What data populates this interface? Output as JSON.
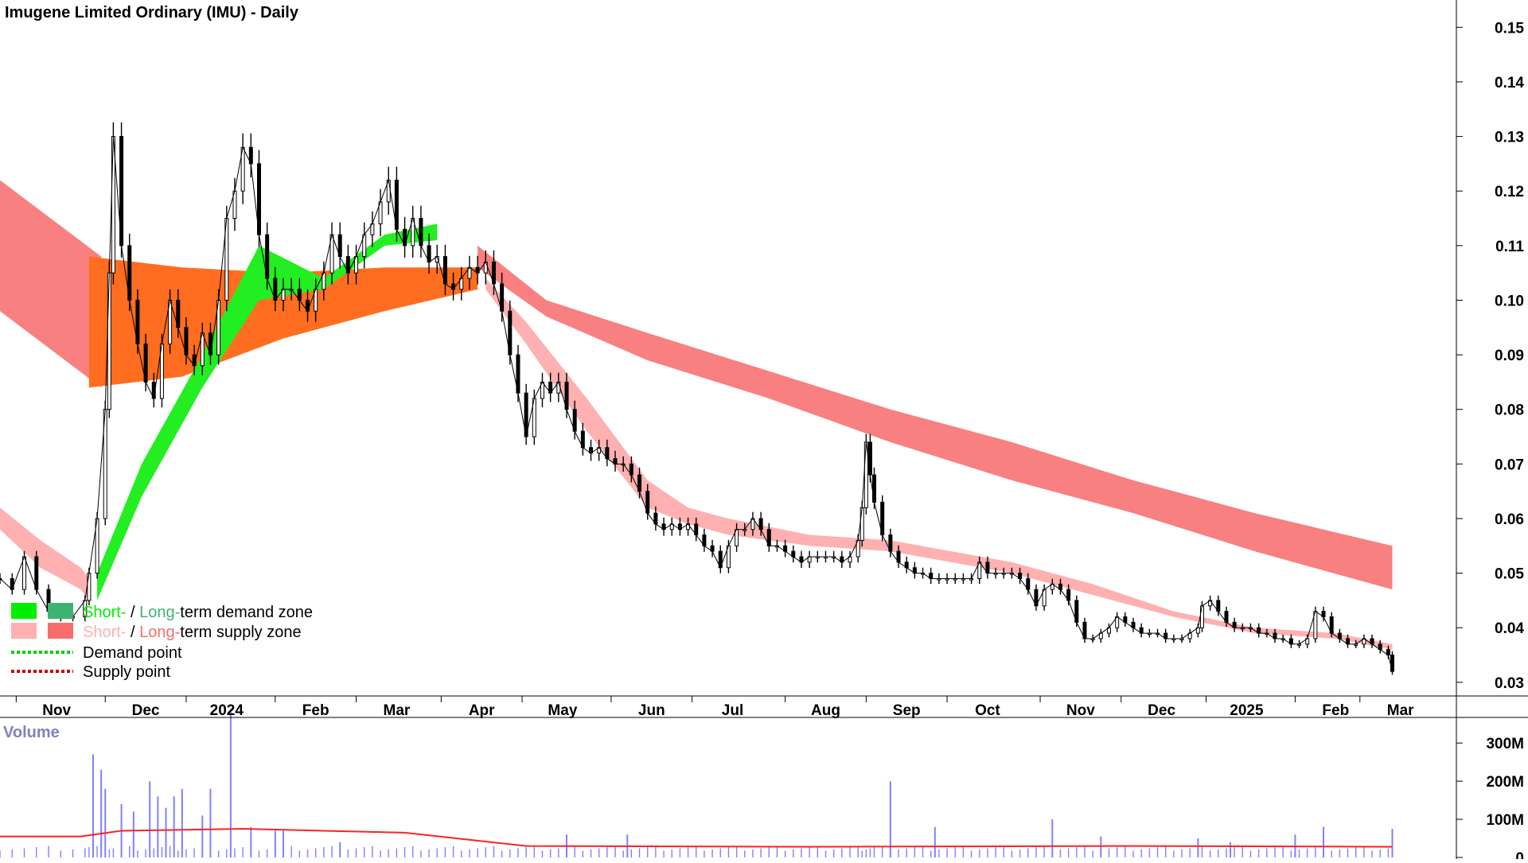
{
  "chart_data": {
    "type": "candlestick",
    "title": "Imugene Limited Ordinary (IMU) - Daily",
    "price_axis": {
      "ticks": [
        "0.15",
        "0.14",
        "0.13",
        "0.12",
        "0.11",
        "0.10",
        "0.09",
        "0.08",
        "0.07",
        "0.06",
        "0.05",
        "0.04",
        "0.03"
      ],
      "ylim": [
        0.0275,
        0.155
      ],
      "position": "right"
    },
    "x_axis": {
      "labels": [
        "Nov",
        "Dec",
        "2024",
        "Feb",
        "Mar",
        "Apr",
        "May",
        "Jun",
        "Jul",
        "Aug",
        "Sep",
        "Oct",
        "Nov",
        "Dec",
        "2025",
        "Feb",
        "Mar"
      ],
      "range": [
        0,
        350
      ]
    },
    "price_series": [
      [
        0,
        0.049
      ],
      [
        3,
        0.047
      ],
      [
        6,
        0.053
      ],
      [
        9,
        0.047
      ],
      [
        12,
        0.043
      ],
      [
        15,
        0.042
      ],
      [
        18,
        0.042
      ],
      [
        21,
        0.045
      ],
      [
        22,
        0.05
      ],
      [
        24,
        0.06
      ],
      [
        26,
        0.08
      ],
      [
        27,
        0.105
      ],
      [
        28,
        0.13
      ],
      [
        30,
        0.11
      ],
      [
        32,
        0.1
      ],
      [
        34,
        0.092
      ],
      [
        36,
        0.085
      ],
      [
        38,
        0.082
      ],
      [
        40,
        0.092
      ],
      [
        42,
        0.1
      ],
      [
        44,
        0.095
      ],
      [
        46,
        0.09
      ],
      [
        48,
        0.088
      ],
      [
        50,
        0.094
      ],
      [
        52,
        0.09
      ],
      [
        54,
        0.1
      ],
      [
        56,
        0.115
      ],
      [
        58,
        0.12
      ],
      [
        60,
        0.128
      ],
      [
        62,
        0.125
      ],
      [
        64,
        0.112
      ],
      [
        66,
        0.104
      ],
      [
        68,
        0.1
      ],
      [
        70,
        0.102
      ],
      [
        72,
        0.102
      ],
      [
        74,
        0.1
      ],
      [
        76,
        0.098
      ],
      [
        78,
        0.102
      ],
      [
        80,
        0.105
      ],
      [
        82,
        0.112
      ],
      [
        84,
        0.108
      ],
      [
        86,
        0.105
      ],
      [
        88,
        0.108
      ],
      [
        90,
        0.112
      ],
      [
        92,
        0.114
      ],
      [
        94,
        0.118
      ],
      [
        96,
        0.122
      ],
      [
        98,
        0.113
      ],
      [
        100,
        0.11
      ],
      [
        102,
        0.115
      ],
      [
        104,
        0.11
      ],
      [
        106,
        0.107
      ],
      [
        108,
        0.108
      ],
      [
        110,
        0.103
      ],
      [
        112,
        0.102
      ],
      [
        114,
        0.104
      ],
      [
        116,
        0.106
      ],
      [
        118,
        0.105
      ],
      [
        120,
        0.107
      ],
      [
        122,
        0.103
      ],
      [
        124,
        0.098
      ],
      [
        126,
        0.09
      ],
      [
        128,
        0.083
      ],
      [
        130,
        0.075
      ],
      [
        132,
        0.082
      ],
      [
        134,
        0.085
      ],
      [
        136,
        0.083
      ],
      [
        138,
        0.085
      ],
      [
        140,
        0.08
      ],
      [
        142,
        0.076
      ],
      [
        144,
        0.073
      ],
      [
        146,
        0.072
      ],
      [
        148,
        0.073
      ],
      [
        150,
        0.071
      ],
      [
        152,
        0.07
      ],
      [
        154,
        0.07
      ],
      [
        156,
        0.068
      ],
      [
        158,
        0.065
      ],
      [
        160,
        0.061
      ],
      [
        162,
        0.059
      ],
      [
        164,
        0.058
      ],
      [
        166,
        0.059
      ],
      [
        168,
        0.058
      ],
      [
        170,
        0.059
      ],
      [
        172,
        0.057
      ],
      [
        174,
        0.055
      ],
      [
        176,
        0.054
      ],
      [
        178,
        0.051
      ],
      [
        180,
        0.055
      ],
      [
        182,
        0.058
      ],
      [
        184,
        0.058
      ],
      [
        186,
        0.06
      ],
      [
        188,
        0.058
      ],
      [
        190,
        0.055
      ],
      [
        192,
        0.055
      ],
      [
        194,
        0.054
      ],
      [
        196,
        0.053
      ],
      [
        198,
        0.052
      ],
      [
        200,
        0.053
      ],
      [
        202,
        0.053
      ],
      [
        204,
        0.053
      ],
      [
        206,
        0.053
      ],
      [
        208,
        0.052
      ],
      [
        210,
        0.053
      ],
      [
        212,
        0.056
      ],
      [
        213,
        0.062
      ],
      [
        214,
        0.074
      ],
      [
        215,
        0.068
      ],
      [
        216,
        0.063
      ],
      [
        218,
        0.057
      ],
      [
        220,
        0.054
      ],
      [
        222,
        0.052
      ],
      [
        224,
        0.051
      ],
      [
        226,
        0.05
      ],
      [
        228,
        0.05
      ],
      [
        230,
        0.049
      ],
      [
        232,
        0.049
      ],
      [
        234,
        0.049
      ],
      [
        236,
        0.049
      ],
      [
        238,
        0.049
      ],
      [
        240,
        0.049
      ],
      [
        242,
        0.052
      ],
      [
        244,
        0.05
      ],
      [
        246,
        0.05
      ],
      [
        248,
        0.05
      ],
      [
        250,
        0.05
      ],
      [
        252,
        0.049
      ],
      [
        254,
        0.047
      ],
      [
        256,
        0.044
      ],
      [
        258,
        0.047
      ],
      [
        260,
        0.048
      ],
      [
        262,
        0.047
      ],
      [
        264,
        0.045
      ],
      [
        266,
        0.041
      ],
      [
        268,
        0.038
      ],
      [
        270,
        0.038
      ],
      [
        272,
        0.039
      ],
      [
        274,
        0.04
      ],
      [
        276,
        0.042
      ],
      [
        278,
        0.041
      ],
      [
        280,
        0.04
      ],
      [
        282,
        0.039
      ],
      [
        284,
        0.039
      ],
      [
        286,
        0.039
      ],
      [
        288,
        0.038
      ],
      [
        290,
        0.038
      ],
      [
        292,
        0.038
      ],
      [
        294,
        0.039
      ],
      [
        296,
        0.04
      ],
      [
        297,
        0.044
      ],
      [
        299,
        0.045
      ],
      [
        301,
        0.043
      ],
      [
        303,
        0.041
      ],
      [
        305,
        0.04
      ],
      [
        307,
        0.04
      ],
      [
        309,
        0.04
      ],
      [
        311,
        0.039
      ],
      [
        313,
        0.039
      ],
      [
        315,
        0.038
      ],
      [
        317,
        0.038
      ],
      [
        319,
        0.037
      ],
      [
        321,
        0.037
      ],
      [
        323,
        0.038
      ],
      [
        325,
        0.043
      ],
      [
        327,
        0.042
      ],
      [
        329,
        0.039
      ],
      [
        331,
        0.038
      ],
      [
        333,
        0.037
      ],
      [
        335,
        0.037
      ],
      [
        337,
        0.038
      ],
      [
        339,
        0.037
      ],
      [
        341,
        0.036
      ],
      [
        343,
        0.035
      ],
      [
        344,
        0.032
      ]
    ],
    "bands": [
      {
        "type": "long-term supply zone",
        "color": "#f88080",
        "segments": [
          {
            "x": [
              0,
              25
            ],
            "upper": [
              0.122,
              0.108
            ],
            "lower": [
              0.098,
              0.084
            ]
          },
          {
            "x": [
              118,
              135,
              160,
              190,
              220,
              250,
              280,
              310,
              344
            ],
            "upper": [
              0.11,
              0.1,
              0.094,
              0.087,
              0.08,
              0.074,
              0.067,
              0.061,
              0.055
            ],
            "lower": [
              0.106,
              0.097,
              0.089,
              0.082,
              0.074,
              0.067,
              0.061,
              0.054,
              0.047
            ]
          }
        ]
      },
      {
        "type": "long-term demand-supply overlap",
        "color": "#ff6d20",
        "segments": [
          {
            "x": [
              22,
              45,
              70,
              95,
              118
            ],
            "upper": [
              0.108,
              0.106,
              0.105,
              0.106,
              0.106
            ],
            "lower": [
              0.084,
              0.086,
              0.093,
              0.098,
              0.102
            ]
          }
        ]
      },
      {
        "type": "short-term demand zone",
        "color": "#22ee22",
        "segments": [
          {
            "x": [
              24,
              35,
              50,
              64,
              80,
              95,
              108
            ],
            "upper": [
              0.05,
              0.07,
              0.09,
              0.11,
              0.104,
              0.112,
              0.114
            ],
            "lower": [
              0.045,
              0.064,
              0.084,
              0.1,
              0.102,
              0.11,
              0.111
            ]
          }
        ]
      },
      {
        "type": "short-term supply zone",
        "color": "#ffb0b0",
        "segments": [
          {
            "x": [
              0,
              10,
              20,
              22
            ],
            "upper": [
              0.062,
              0.056,
              0.051,
              0.049
            ],
            "lower": [
              0.058,
              0.051,
              0.047,
              0.045
            ]
          },
          {
            "x": [
              120,
              130,
              145,
              160,
              170,
              180,
              200,
              220,
              250,
              270,
              290,
              310,
              330,
              344
            ],
            "upper": [
              0.104,
              0.096,
              0.082,
              0.067,
              0.062,
              0.06,
              0.057,
              0.056,
              0.052,
              0.048,
              0.043,
              0.04,
              0.039,
              0.037
            ],
            "lower": [
              0.102,
              0.092,
              0.076,
              0.062,
              0.059,
              0.057,
              0.055,
              0.054,
              0.05,
              0.046,
              0.042,
              0.039,
              0.038,
              0.036
            ]
          }
        ]
      }
    ],
    "volume": {
      "title": "Volume",
      "ticks": [
        "300M",
        "200M",
        "100M",
        "0"
      ],
      "ylim": [
        0,
        340
      ],
      "spikes": [
        [
          23,
          270
        ],
        [
          25,
          230
        ],
        [
          26,
          180
        ],
        [
          30,
          140
        ],
        [
          33,
          120
        ],
        [
          37,
          200
        ],
        [
          39,
          160
        ],
        [
          41,
          130
        ],
        [
          43,
          160
        ],
        [
          45,
          180
        ],
        [
          50,
          110
        ],
        [
          52,
          180
        ],
        [
          57,
          390
        ],
        [
          62,
          80
        ],
        [
          68,
          70
        ],
        [
          70,
          70
        ],
        [
          84,
          40
        ],
        [
          140,
          60
        ],
        [
          155,
          60
        ],
        [
          220,
          200
        ],
        [
          231,
          80
        ],
        [
          260,
          100
        ],
        [
          272,
          55
        ],
        [
          296,
          50
        ],
        [
          304,
          40
        ],
        [
          320,
          60
        ],
        [
          327,
          80
        ],
        [
          344,
          75
        ]
      ],
      "ma": {
        "x": [
          0,
          20,
          30,
          60,
          80,
          100,
          130,
          200,
          280,
          344
        ],
        "y": [
          55,
          55,
          70,
          75,
          70,
          65,
          30,
          28,
          30,
          28
        ]
      }
    },
    "legend": {
      "placement": "bottom-left",
      "entries": [
        {
          "prefix": "Short-",
          "sep": " / ",
          "mid": "Long-",
          "suffix": "term demand zone",
          "short_color": "#00ee00",
          "long_color": "#3cb371"
        },
        {
          "prefix": "Short-",
          "sep": " / ",
          "mid": "Long-",
          "suffix": "term supply zone",
          "short_color": "#ffb0b0",
          "long_color": "#f86c6c"
        },
        {
          "label": "Demand point",
          "color": "#00cc00"
        },
        {
          "label": "Supply point",
          "color": "#cc0000"
        }
      ]
    },
    "colors": {
      "candle": "#000000",
      "volume_bar": "#8080ff",
      "volume_ma": "#ff2020",
      "axis": "#000000"
    }
  }
}
